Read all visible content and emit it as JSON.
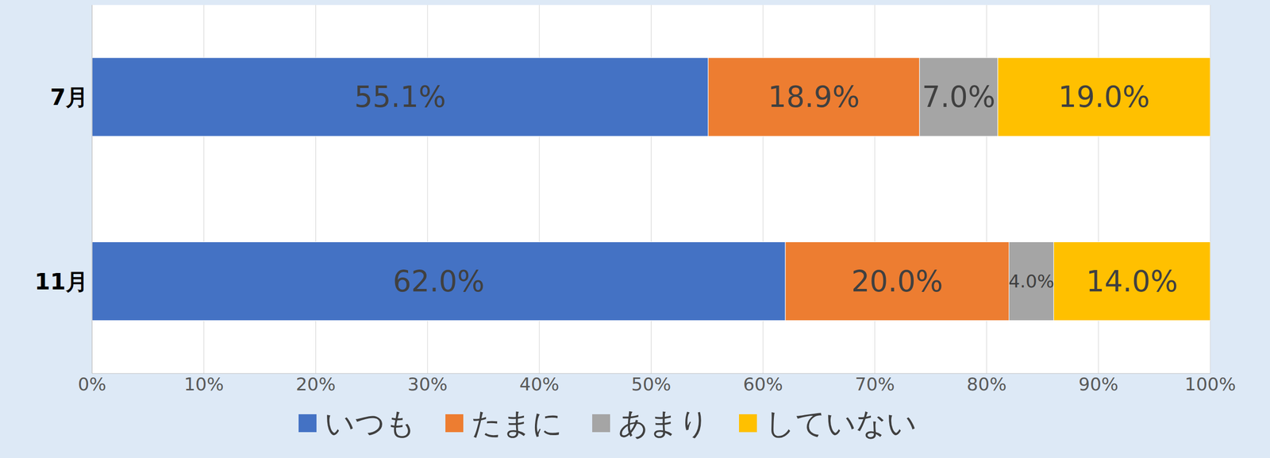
{
  "chart_data": {
    "type": "bar",
    "orientation": "horizontal",
    "stacked": true,
    "categories": [
      "7月",
      "11月"
    ],
    "series": [
      {
        "name": "いつも",
        "color": "#4472c4",
        "values": [
          55.1,
          62.0
        ],
        "value_labels": [
          "55.1%",
          "62.0%"
        ]
      },
      {
        "name": "たまに",
        "color": "#ed7d31",
        "values": [
          18.9,
          20.0
        ],
        "value_labels": [
          "18.9%",
          "20.0%"
        ]
      },
      {
        "name": "あまり",
        "color": "#a5a5a5",
        "values": [
          7.0,
          4.0
        ],
        "value_labels": [
          "7.0%",
          "4.0%"
        ]
      },
      {
        "name": "していない",
        "color": "#ffc000",
        "values": [
          19.0,
          14.0
        ],
        "value_labels": [
          "19.0%",
          "14.0%"
        ]
      }
    ],
    "xlim": [
      0,
      100
    ],
    "xticks": [
      {
        "value": 0,
        "label": "0%"
      },
      {
        "value": 10,
        "label": "10%"
      },
      {
        "value": 20,
        "label": "20%"
      },
      {
        "value": 30,
        "label": "30%"
      },
      {
        "value": 40,
        "label": "40%"
      },
      {
        "value": 50,
        "label": "50%"
      },
      {
        "value": 60,
        "label": "60%"
      },
      {
        "value": 70,
        "label": "70%"
      },
      {
        "value": 80,
        "label": "80%"
      },
      {
        "value": 90,
        "label": "90%"
      },
      {
        "value": 100,
        "label": "100%"
      }
    ],
    "grid": true,
    "legend": "bottom",
    "data_labels": true
  }
}
